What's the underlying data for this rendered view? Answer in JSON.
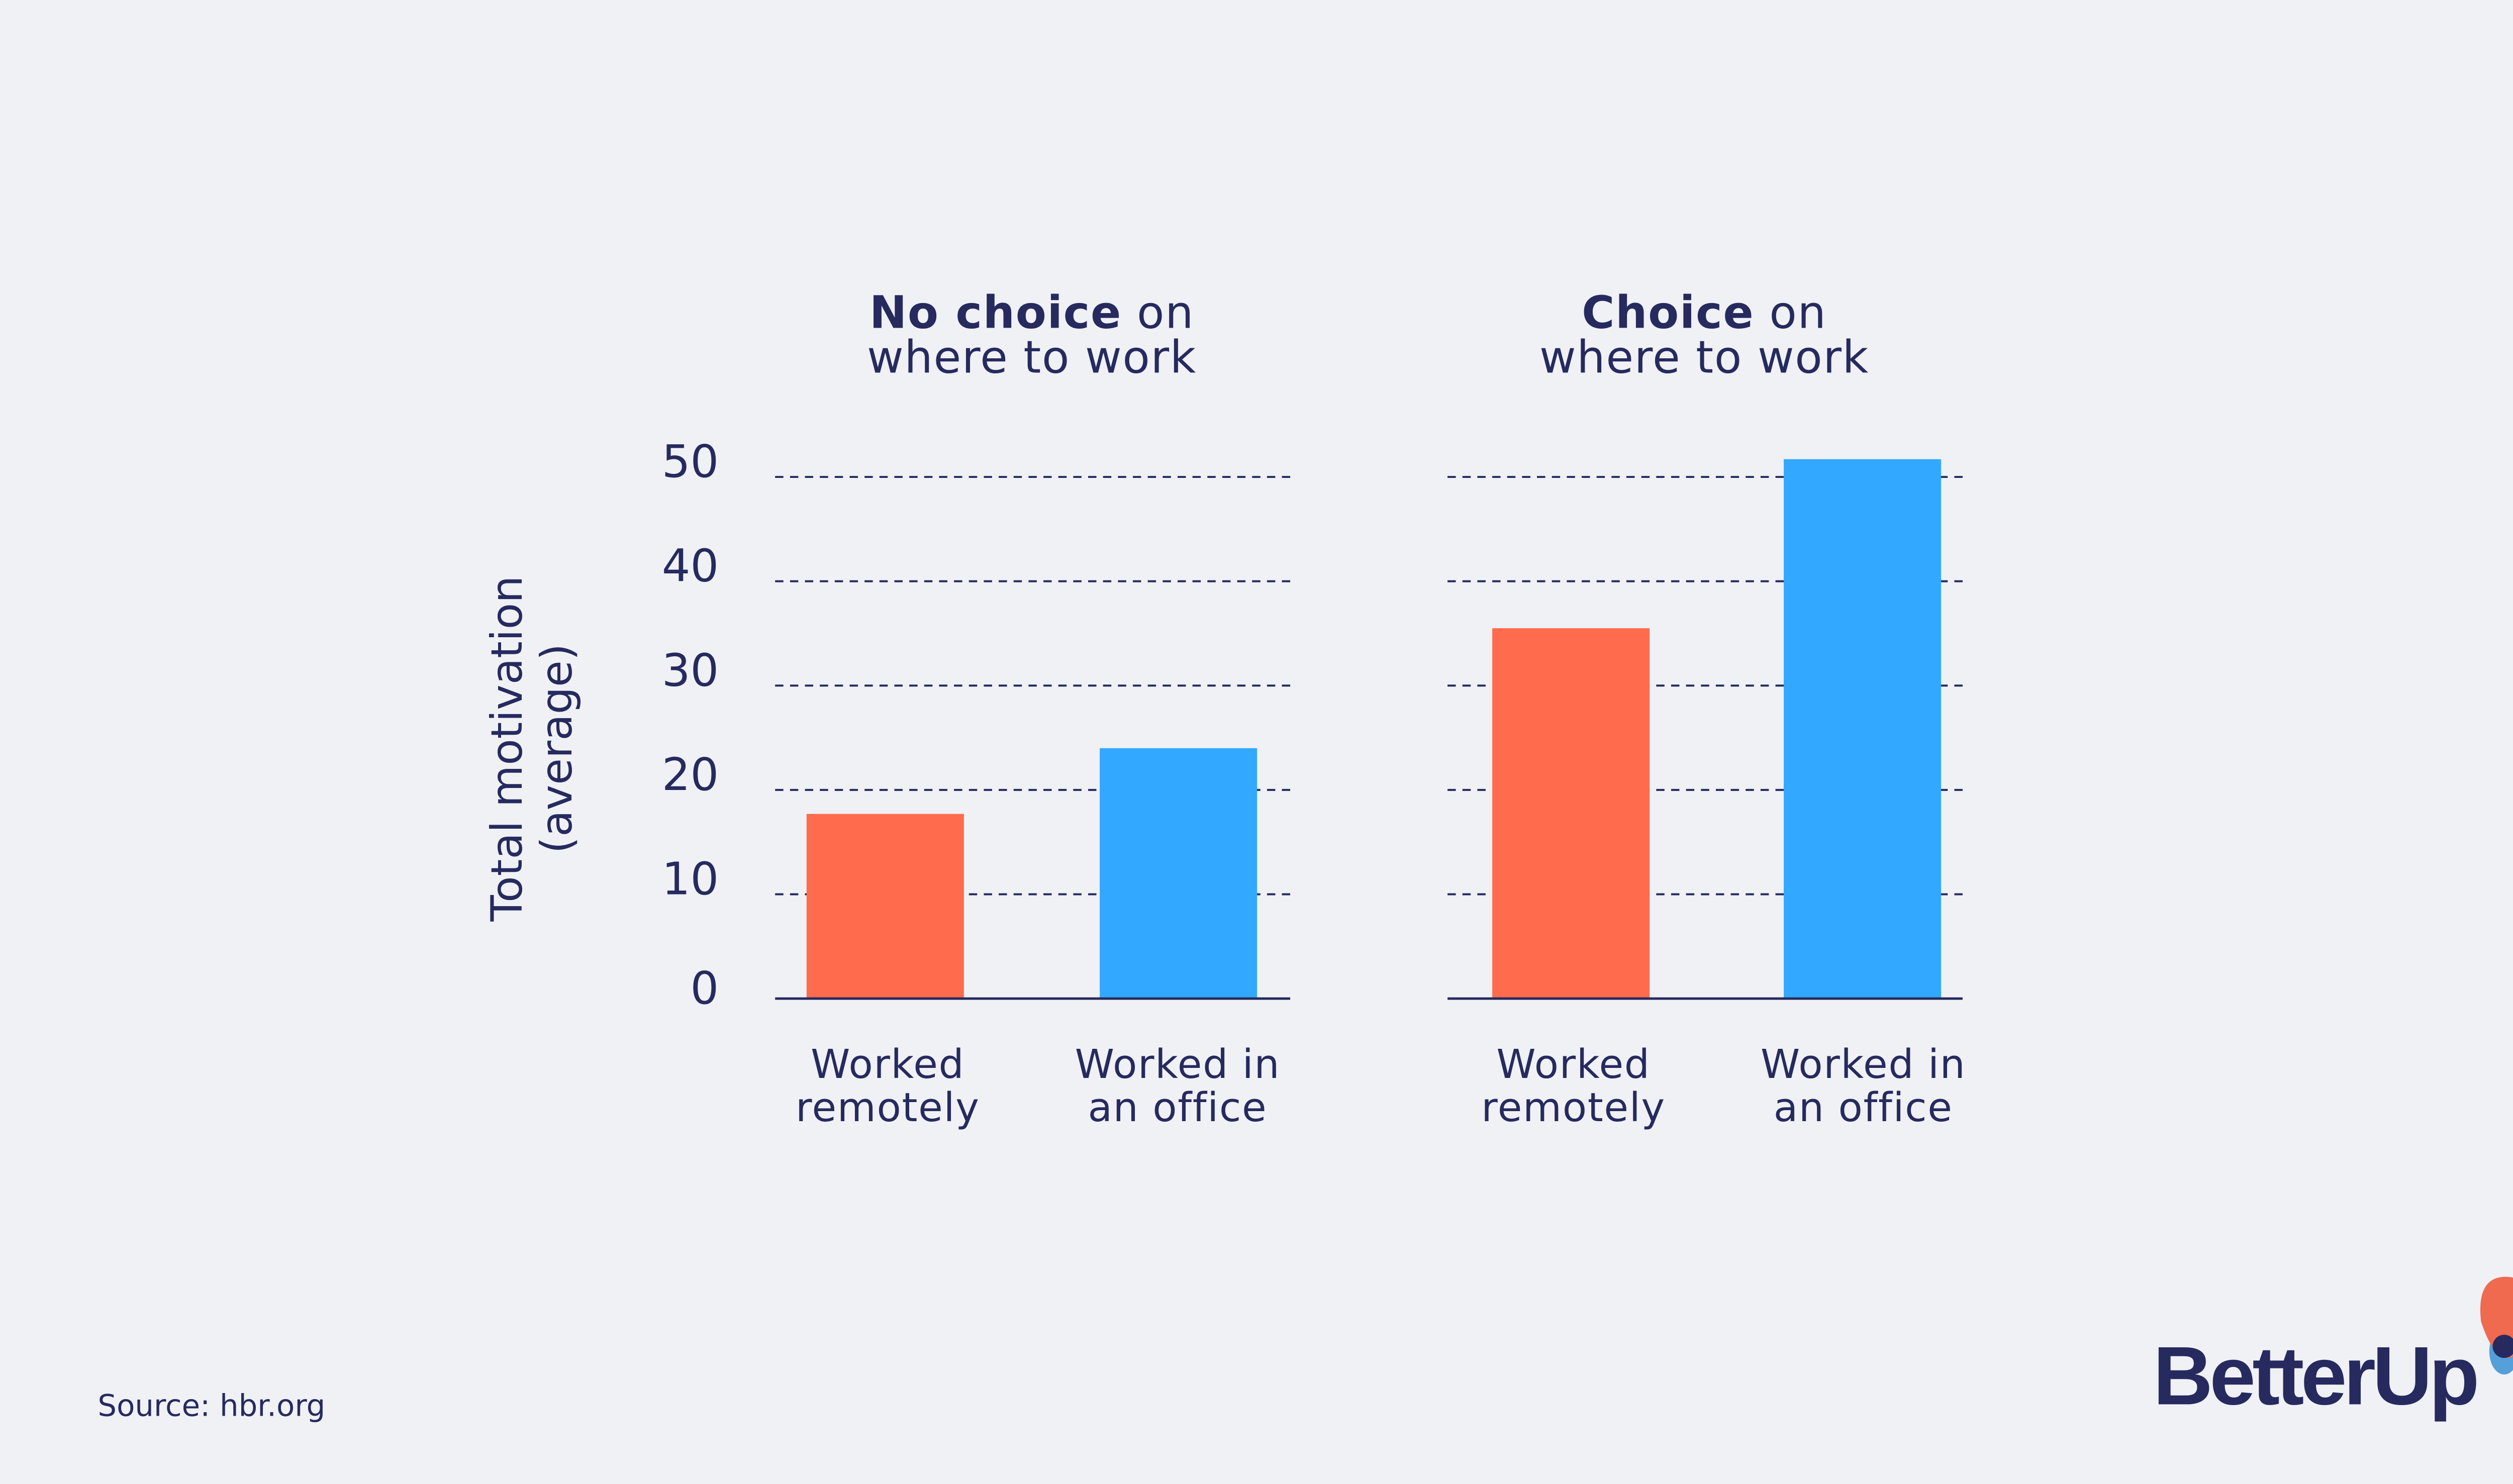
{
  "chart_data": [
    {
      "type": "bar",
      "title_bold": "No choice",
      "title_rest": " on",
      "title_line2": "where to work",
      "categories": [
        "Worked remotely",
        "Worked in an office"
      ],
      "category_lines": [
        [
          "Worked",
          "remotely"
        ],
        [
          "Worked in",
          "an office"
        ]
      ],
      "values": [
        17.7,
        24.0
      ],
      "colors": [
        "#ff6b4d",
        "#33a8ff"
      ],
      "ylabel": "Total motivation (average)",
      "ylabel_lines": [
        "Total motivation",
        "(average)"
      ],
      "yticks": [
        0,
        10,
        20,
        30,
        40,
        50
      ],
      "ylim": [
        0,
        50
      ],
      "grid": "dashed"
    },
    {
      "type": "bar",
      "title_bold": "Choice",
      "title_rest": " on",
      "title_line2": "where to work",
      "categories": [
        "Worked remotely",
        "Worked in an office"
      ],
      "category_lines": [
        [
          "Worked",
          "remotely"
        ],
        [
          "Worked in",
          "an office"
        ]
      ],
      "values": [
        35.5,
        51.7
      ],
      "colors": [
        "#ff6b4d",
        "#33a8ff"
      ],
      "ylim": [
        0,
        50
      ],
      "grid": "dashed"
    }
  ],
  "source": "Source: hbr.org",
  "logo": {
    "text": "BetterUp",
    "colors": [
      "#262a5e",
      "#f06a50",
      "#55a0d9"
    ]
  },
  "colors": {
    "background": "#eff1f5",
    "text": "#262a5e"
  }
}
